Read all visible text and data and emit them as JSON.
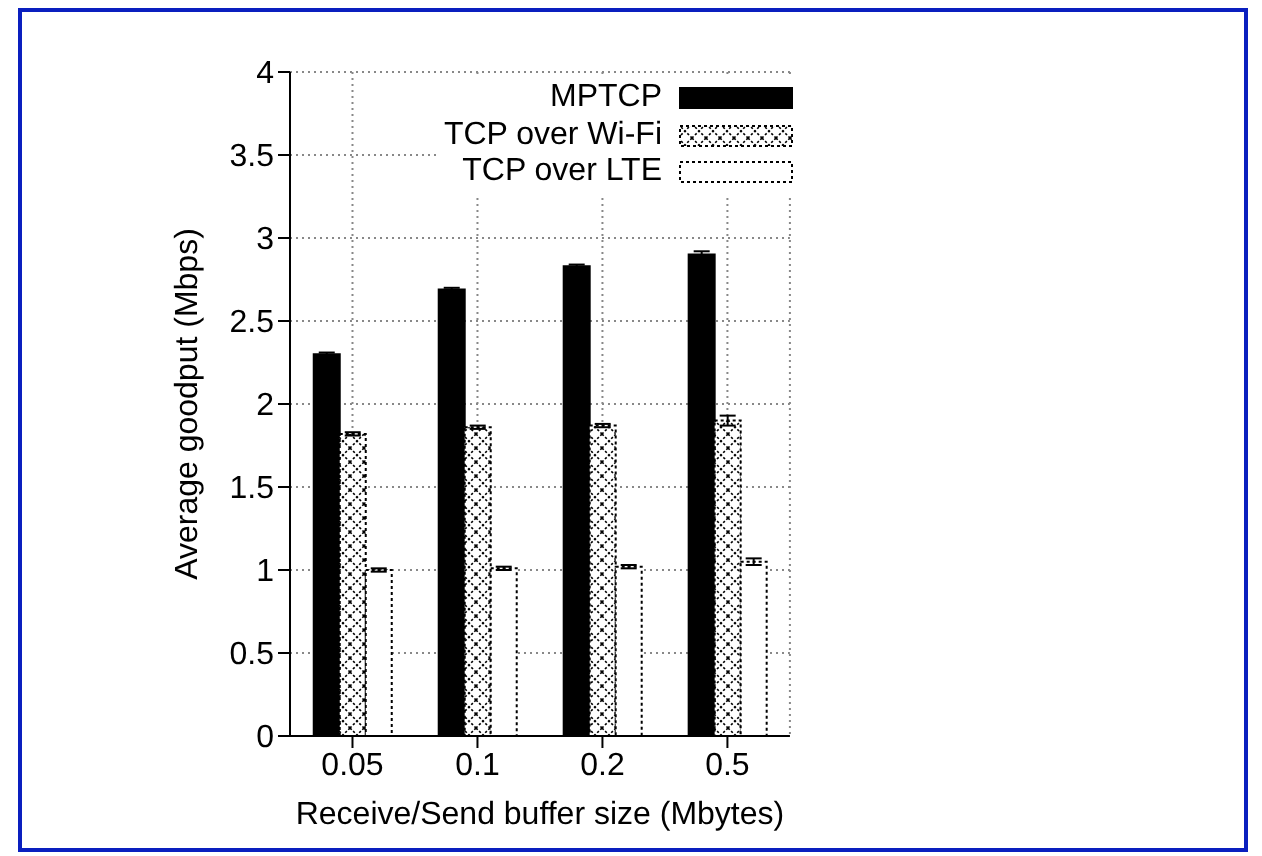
{
  "chart_data": {
    "type": "bar",
    "xlabel": "Receive/Send buffer size (Mbytes)",
    "ylabel": "Average goodput (Mbps)",
    "categories": [
      "0.05",
      "0.1",
      "0.2",
      "0.5"
    ],
    "series": [
      {
        "name": "MPTCP",
        "color": "#000000",
        "values": [
          2.3,
          2.69,
          2.83,
          2.9
        ],
        "errors": [
          0.01,
          0.01,
          0.01,
          0.02
        ]
      },
      {
        "name": "TCP over Wi-Fi",
        "color": "#000000",
        "values": [
          1.82,
          1.86,
          1.87,
          1.9
        ],
        "errors": [
          0.01,
          0.01,
          0.01,
          0.03
        ]
      },
      {
        "name": "TCP over LTE",
        "color": "#000000",
        "values": [
          1.0,
          1.01,
          1.02,
          1.05
        ],
        "errors": [
          0.01,
          0.01,
          0.01,
          0.02
        ]
      }
    ],
    "ylim": [
      0,
      4
    ],
    "yticks": [
      0,
      0.5,
      1,
      1.5,
      2,
      2.5,
      3,
      3.5,
      4
    ],
    "grid": true,
    "legend": "top right"
  }
}
